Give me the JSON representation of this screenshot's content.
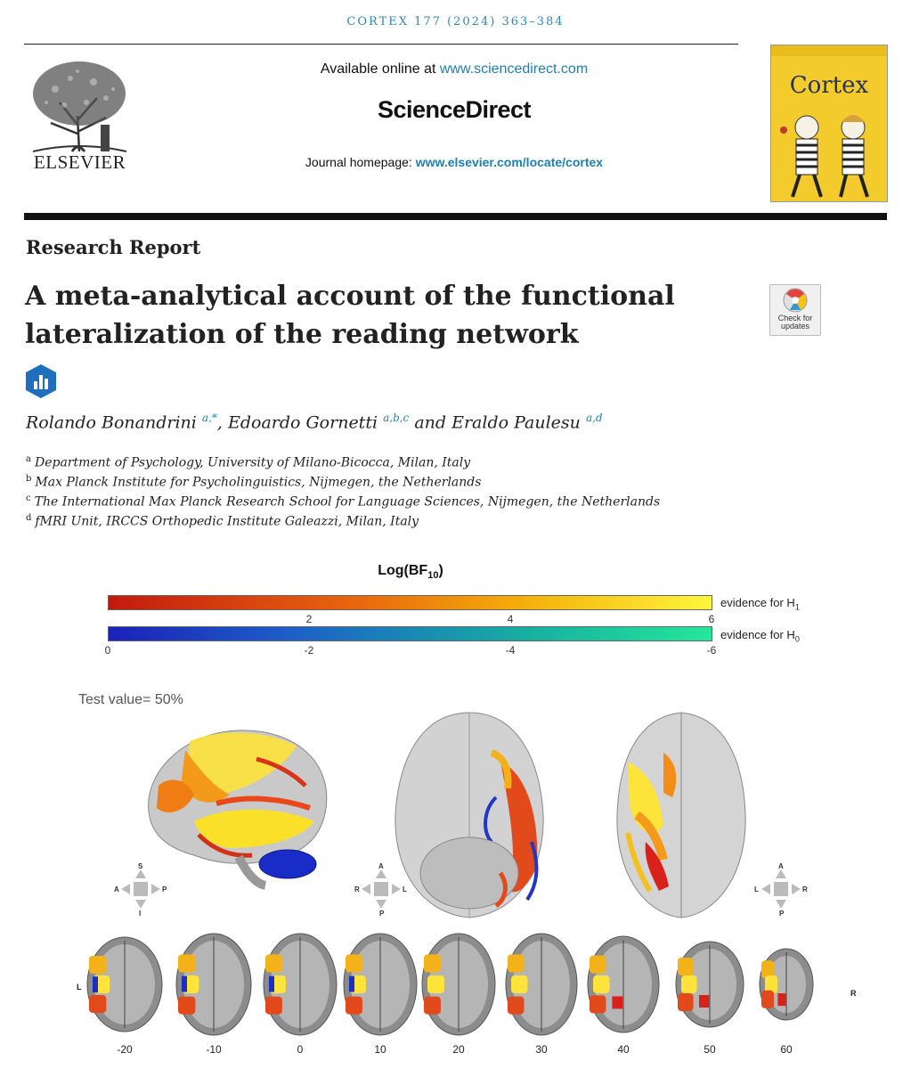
{
  "header": {
    "journal_ref": "CORTEX 177 (2024) 363–384",
    "available_online_prefix": "Available online at ",
    "available_online_link": "www.sciencedirect.com",
    "platform_name": "ScienceDirect",
    "homepage_prefix": "Journal homepage: ",
    "homepage_link": "www.elsevier.com/locate/cortex",
    "publisher": "ELSEVIER",
    "cover_title": "Cortex",
    "check_updates": "Check for updates"
  },
  "article": {
    "type": "Research Report",
    "title_line1": "A meta-analytical account of the functional",
    "title_line2": "lateralization of the reading network",
    "authors": [
      {
        "name": "Rolando Bonandrini",
        "sup": "a,*",
        "sep": ", "
      },
      {
        "name": "Edoardo Gornetti",
        "sup": "a,b,c",
        "sep": " and "
      },
      {
        "name": "Eraldo Paulesu",
        "sup": "a,d",
        "sep": ""
      }
    ],
    "affiliations": [
      {
        "key": "a",
        "text": "Department of Psychology, University of Milano-Bicocca, Milan, Italy"
      },
      {
        "key": "b",
        "text": "Max Planck Institute for Psycholinguistics, Nijmegen, the Netherlands"
      },
      {
        "key": "c",
        "text": "The International Max Planck Research School for Language Sciences, Nijmegen, the Netherlands"
      },
      {
        "key": "d",
        "text": "fMRI Unit, IRCCS Orthopedic Institute Galeazzi, Milan, Italy"
      }
    ]
  },
  "figure": {
    "colorbar_title": "Log(BF",
    "colorbar_title_sub": "10",
    "h1_label": "evidence for H",
    "h1_sub": "1",
    "h0_label": "evidence for H",
    "h0_sub": "0",
    "h1_ticks": [
      "2",
      "4",
      "6"
    ],
    "h0_ticks": [
      "0",
      "-2",
      "-4",
      "-6"
    ],
    "test_value": "Test value= 50%",
    "lateral_view": {
      "top": "S",
      "left": "A",
      "right": "P",
      "bottom": "I"
    },
    "inferior_view": {
      "top": "A",
      "left": "R",
      "right": "L",
      "bottom": "P"
    },
    "superior_view": {
      "top": "A",
      "left": "L",
      "right": "R",
      "bottom": "P"
    },
    "slice_left": "L",
    "slice_right": "R",
    "slices": [
      "-20",
      "-10",
      "0",
      "10",
      "20",
      "30",
      "40",
      "50",
      "60"
    ]
  },
  "colors": {
    "link_blue": "#1d7fb5",
    "h1_low": "#c21a0e",
    "h1_high": "#fff63c",
    "h0_low": "#1b21b8",
    "h0_high": "#25e79a"
  }
}
